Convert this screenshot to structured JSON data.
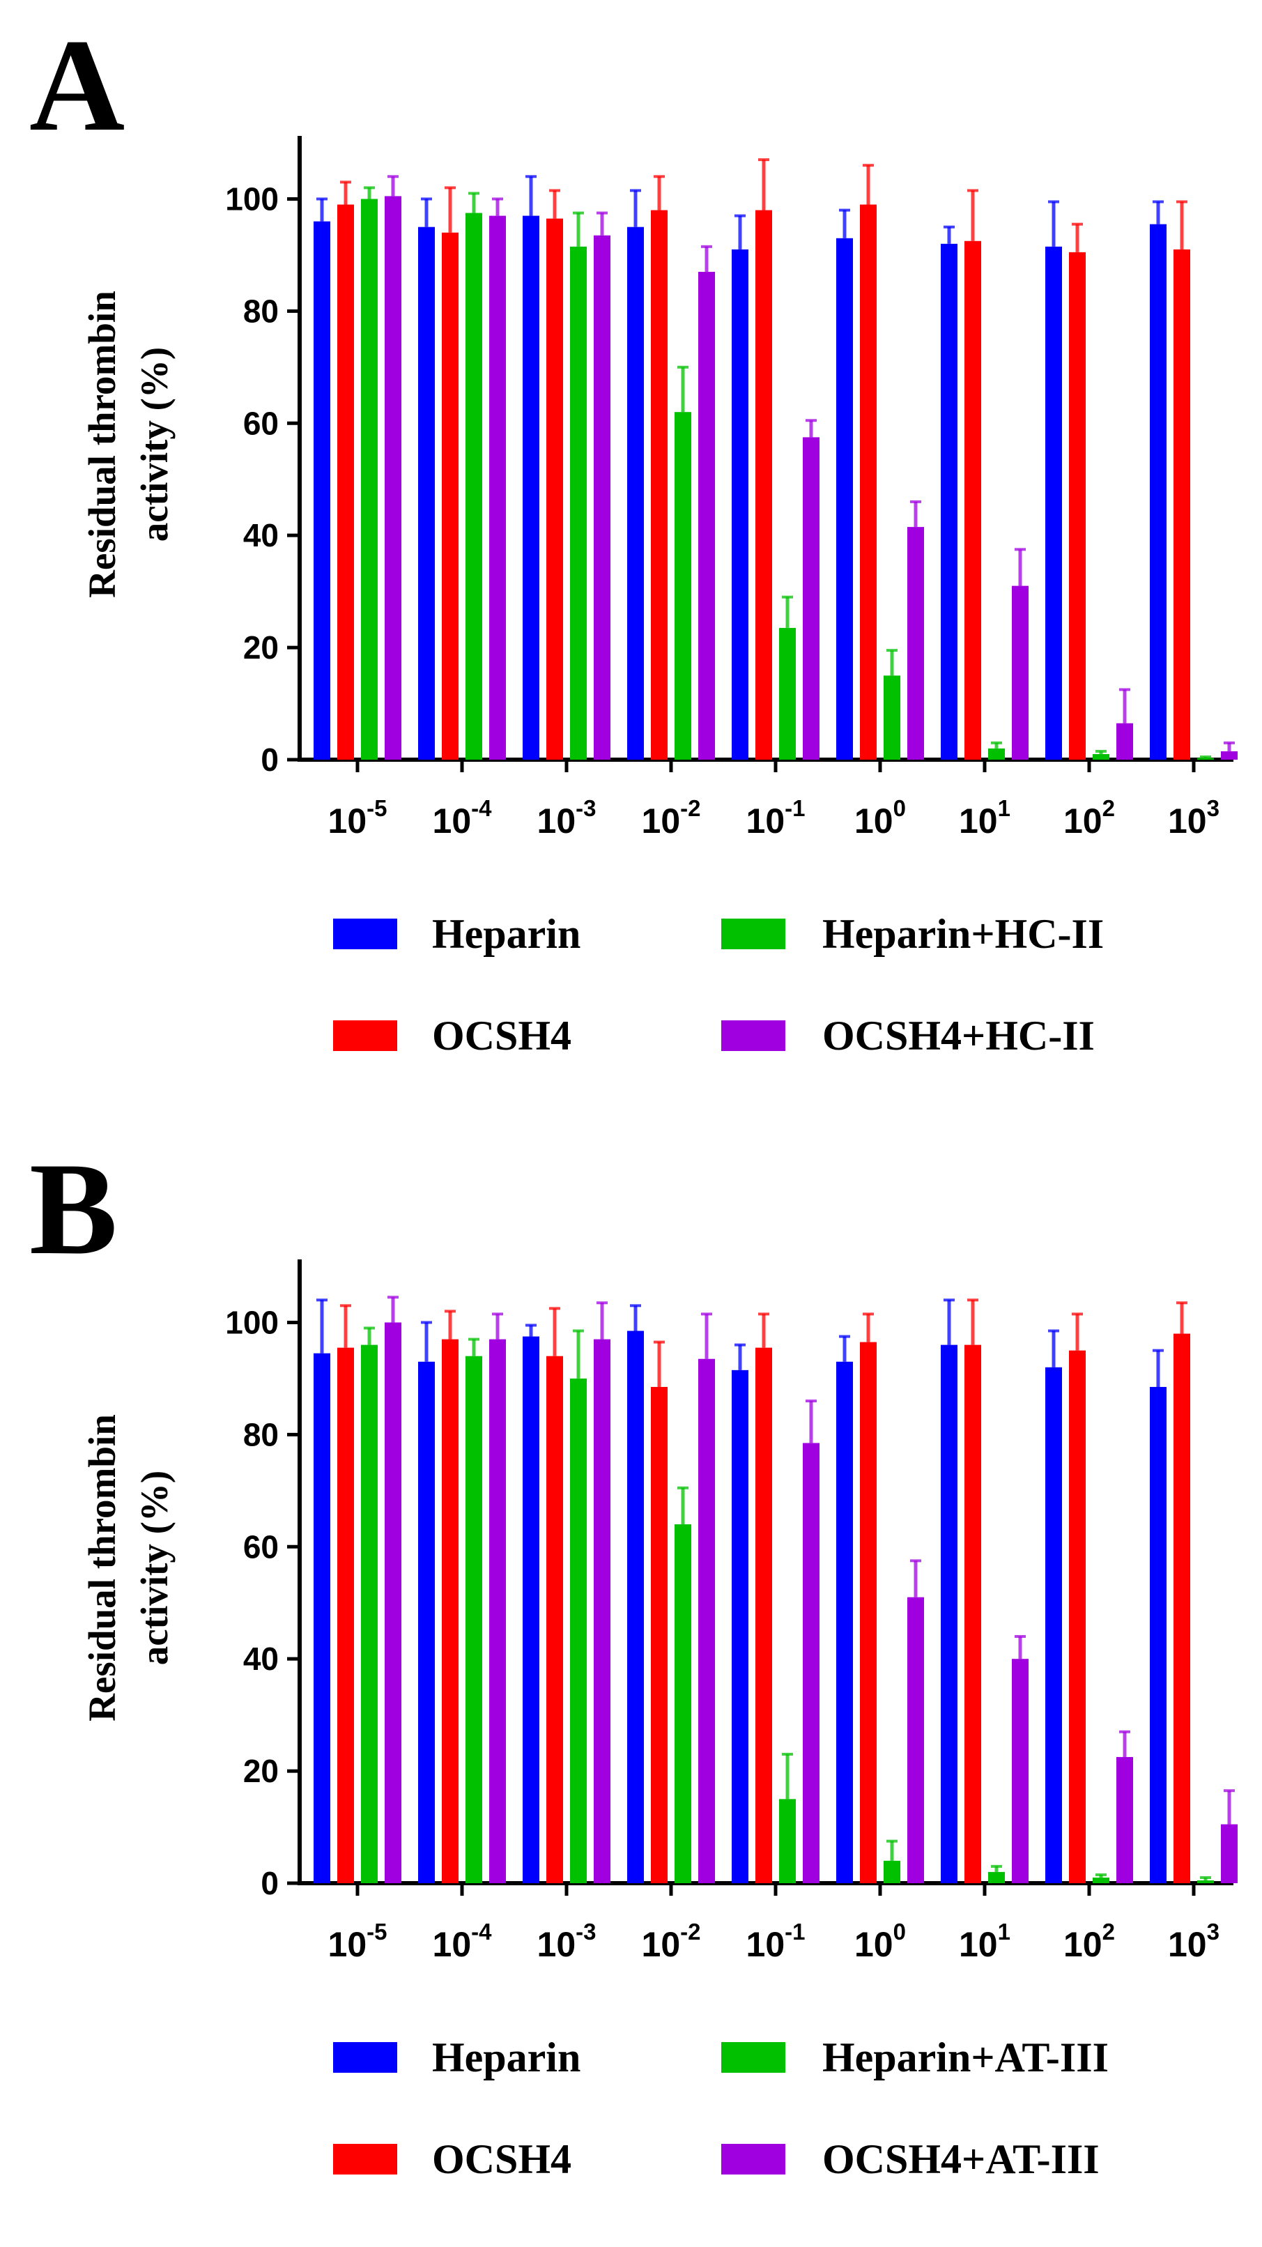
{
  "chart_data": [
    {
      "panel": "A",
      "type": "bar",
      "ylabel_line1": "Residual thrombin",
      "ylabel_line2": "activity (%)",
      "ylim": [
        0,
        110
      ],
      "yticks": [
        "0",
        "20",
        "40",
        "60",
        "80",
        "100"
      ],
      "yticks_values": [
        0,
        20,
        40,
        60,
        80,
        100
      ],
      "categories": [
        {
          "base": "10",
          "exp": "-5"
        },
        {
          "base": "10",
          "exp": "-4"
        },
        {
          "base": "10",
          "exp": "-3"
        },
        {
          "base": "10",
          "exp": "-2"
        },
        {
          "base": "10",
          "exp": "-1"
        },
        {
          "base": "10",
          "exp": "0"
        },
        {
          "base": "10",
          "exp": "1"
        },
        {
          "base": "10",
          "exp": "2"
        },
        {
          "base": "10",
          "exp": "3"
        }
      ],
      "series": [
        {
          "name": "Heparin",
          "color": "#0000ff",
          "values": [
            96,
            95,
            97,
            95,
            91,
            93,
            92,
            91.5,
            95.5
          ],
          "errors": [
            4,
            5,
            7,
            6.5,
            6,
            5,
            3,
            8,
            4
          ]
        },
        {
          "name": "OCSH4",
          "color": "#ff0000",
          "values": [
            99,
            94,
            96.5,
            98,
            98,
            99,
            92.5,
            90.5,
            91
          ],
          "errors": [
            4,
            8,
            5,
            6,
            9,
            7,
            9,
            5,
            8.5
          ]
        },
        {
          "name": "Heparin+HC-II",
          "color": "#00c000",
          "values": [
            100,
            97.5,
            91.5,
            62,
            23.5,
            15,
            2,
            1,
            0.3
          ],
          "errors": [
            2,
            3.5,
            6,
            8,
            5.5,
            4.5,
            1,
            0.5,
            0.2
          ]
        },
        {
          "name": "OCSH4+HC-II",
          "color": "#a000e0",
          "values": [
            100.5,
            97,
            93.5,
            87,
            57.5,
            41.5,
            31,
            6.5,
            1.5
          ],
          "errors": [
            3.5,
            3,
            4,
            4.5,
            3,
            4.5,
            6.5,
            6,
            1.5
          ]
        }
      ],
      "legend": [
        {
          "label": "Heparin",
          "color": "#0000ff"
        },
        {
          "label": "Heparin+HC-II",
          "color": "#00c000"
        },
        {
          "label": "OCSH4",
          "color": "#ff0000"
        },
        {
          "label": "OCSH4+HC-II",
          "color": "#a000e0"
        }
      ]
    },
    {
      "panel": "B",
      "type": "bar",
      "ylabel_line1": "Residual thrombin",
      "ylabel_line2": "activity (%)",
      "ylim": [
        0,
        110
      ],
      "yticks": [
        "0",
        "20",
        "40",
        "60",
        "80",
        "100"
      ],
      "yticks_values": [
        0,
        20,
        40,
        60,
        80,
        100
      ],
      "categories": [
        {
          "base": "10",
          "exp": "-5"
        },
        {
          "base": "10",
          "exp": "-4"
        },
        {
          "base": "10",
          "exp": "-3"
        },
        {
          "base": "10",
          "exp": "-2"
        },
        {
          "base": "10",
          "exp": "-1"
        },
        {
          "base": "10",
          "exp": "0"
        },
        {
          "base": "10",
          "exp": "1"
        },
        {
          "base": "10",
          "exp": "2"
        },
        {
          "base": "10",
          "exp": "3"
        }
      ],
      "series": [
        {
          "name": "Heparin",
          "color": "#0000ff",
          "values": [
            94.5,
            93,
            97.5,
            98.5,
            91.5,
            93,
            96,
            92,
            88.5
          ],
          "errors": [
            9.5,
            7,
            2,
            4.5,
            4.5,
            4.5,
            8,
            6.5,
            6.5
          ]
        },
        {
          "name": "OCSH4",
          "color": "#ff0000",
          "values": [
            95.5,
            97,
            94,
            88.5,
            95.5,
            96.5,
            96,
            95,
            98
          ],
          "errors": [
            7.5,
            5,
            8.5,
            8,
            6,
            5,
            8,
            6.5,
            5.5
          ]
        },
        {
          "name": "Heparin+AT-III",
          "color": "#00c000",
          "values": [
            96,
            94,
            90,
            64,
            15,
            4,
            2,
            1,
            0.5
          ],
          "errors": [
            3,
            3,
            8.5,
            6.5,
            8,
            3.5,
            1,
            0.5,
            0.5
          ]
        },
        {
          "name": "OCSH4+AT-III",
          "color": "#a000e0",
          "values": [
            100,
            97,
            97,
            93.5,
            78.5,
            51,
            40,
            22.5,
            10.5
          ],
          "errors": [
            4.5,
            4.5,
            6.5,
            8,
            7.5,
            6.5,
            4,
            4.5,
            6
          ]
        }
      ],
      "legend": [
        {
          "label": "Heparin",
          "color": "#0000ff"
        },
        {
          "label": "Heparin+AT-III",
          "color": "#00c000"
        },
        {
          "label": "OCSH4",
          "color": "#ff0000"
        },
        {
          "label": "OCSH4+AT-III",
          "color": "#a000e0"
        }
      ]
    }
  ],
  "panels": [
    {
      "letter": "A"
    },
    {
      "letter": "B"
    }
  ]
}
